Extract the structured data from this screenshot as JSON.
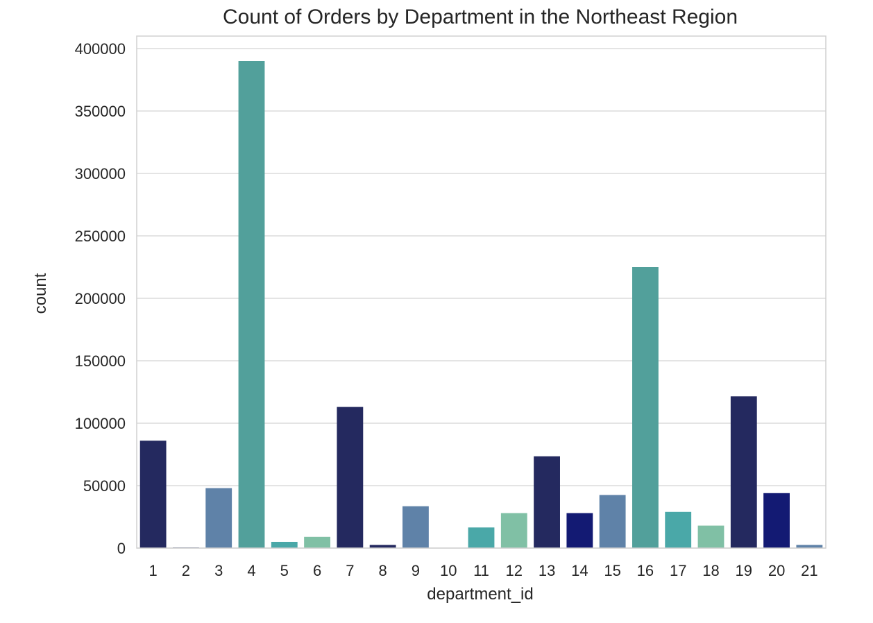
{
  "chart_data": {
    "type": "bar",
    "title": "Count of Orders by Department in the Northeast Region",
    "xlabel": "department_id",
    "ylabel": "count",
    "ylim": [
      0,
      410000
    ],
    "yticks": [
      0,
      50000,
      100000,
      150000,
      200000,
      250000,
      300000,
      350000,
      400000
    ],
    "grid": true,
    "categories": [
      "1",
      "2",
      "3",
      "4",
      "5",
      "6",
      "7",
      "8",
      "9",
      "10",
      "11",
      "12",
      "13",
      "14",
      "15",
      "16",
      "17",
      "18",
      "19",
      "20",
      "21"
    ],
    "values": [
      86000,
      500,
      48000,
      390000,
      5000,
      9000,
      113000,
      2500,
      33500,
      0,
      16500,
      28000,
      73500,
      28000,
      42500,
      225000,
      29000,
      18000,
      121500,
      44000,
      2500
    ],
    "colors": [
      "#24295f",
      "#24295f",
      "#5f82a8",
      "#52a09b",
      "#4aa8a8",
      "#80c0a5",
      "#24295f",
      "#24295f",
      "#5f82a8",
      "#52a09b",
      "#4aa8a8",
      "#80c0a5",
      "#24295f",
      "#131a73",
      "#5f82a8",
      "#52a09b",
      "#4aa8a8",
      "#80c0a5",
      "#24295f",
      "#131a73",
      "#5f82a8"
    ]
  }
}
